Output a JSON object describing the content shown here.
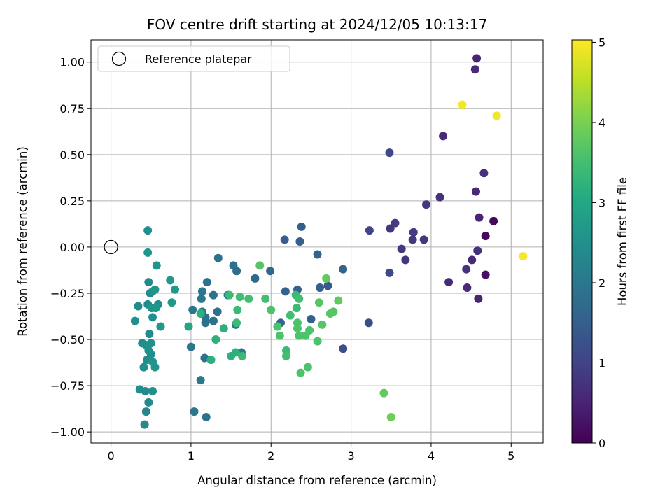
{
  "chart_data": {
    "type": "scatter",
    "title": "FOV centre drift starting at 2024/12/05 10:13:17",
    "xlabel": "Angular distance from reference (arcmin)",
    "ylabel": "Rotation from reference (arcmin)",
    "xlim": [
      -0.25,
      5.4
    ],
    "ylim": [
      -1.06,
      1.12
    ],
    "x_ticks": [
      0,
      1,
      2,
      3,
      4,
      5
    ],
    "x_tick_labels": [
      "0",
      "1",
      "2",
      "3",
      "4",
      "5"
    ],
    "y_ticks": [
      -1.0,
      -0.75,
      -0.5,
      -0.25,
      0.0,
      0.25,
      0.5,
      0.75,
      1.0
    ],
    "y_tick_labels": [
      "−1.00",
      "−0.75",
      "−0.50",
      "−0.25",
      "0.00",
      "0.25",
      "0.50",
      "0.75",
      "1.00"
    ],
    "grid": true,
    "legend": {
      "placement": "top-left",
      "label": "Reference platepar"
    },
    "reference_point": {
      "x": 0.0,
      "y": 0.0
    },
    "colorbar": {
      "label": "Hours from first FF file",
      "range": [
        0,
        5.03
      ],
      "ticks": [
        0,
        1,
        2,
        3,
        4,
        5
      ],
      "tick_labels": [
        "0",
        "1",
        "2",
        "3",
        "4",
        "5"
      ],
      "colormap": "viridis"
    },
    "points": [
      [
        4.57,
        1.02,
        0.5
      ],
      [
        4.55,
        0.96,
        0.6
      ],
      [
        4.39,
        0.77,
        4.95
      ],
      [
        4.82,
        0.71,
        4.95
      ],
      [
        4.15,
        0.6,
        0.6
      ],
      [
        3.48,
        0.51,
        1.1
      ],
      [
        4.66,
        0.4,
        0.7
      ],
      [
        4.56,
        0.3,
        0.6
      ],
      [
        4.11,
        0.27,
        0.7
      ],
      [
        3.94,
        0.23,
        0.8
      ],
      [
        4.6,
        0.16,
        0.5
      ],
      [
        4.78,
        0.14,
        0.1
      ],
      [
        3.55,
        0.13,
        0.9
      ],
      [
        3.49,
        0.1,
        0.8
      ],
      [
        3.23,
        0.09,
        1.0
      ],
      [
        3.78,
        0.08,
        0.9
      ],
      [
        4.68,
        0.06,
        0.1
      ],
      [
        3.91,
        0.04,
        0.8
      ],
      [
        3.77,
        0.04,
        0.8
      ],
      [
        3.63,
        -0.01,
        0.8
      ],
      [
        4.58,
        -0.02,
        0.7
      ],
      [
        5.15,
        -0.05,
        5.0
      ],
      [
        3.68,
        -0.07,
        0.8
      ],
      [
        4.51,
        -0.07,
        0.6
      ],
      [
        4.44,
        -0.12,
        0.7
      ],
      [
        3.48,
        -0.14,
        1.1
      ],
      [
        4.68,
        -0.15,
        0.2
      ],
      [
        4.22,
        -0.19,
        0.6
      ],
      [
        4.45,
        -0.22,
        0.6
      ],
      [
        4.59,
        -0.28,
        0.5
      ],
      [
        3.22,
        -0.41,
        1.2
      ],
      [
        2.9,
        -0.55,
        1.2
      ],
      [
        2.38,
        0.11,
        1.5
      ],
      [
        2.17,
        0.04,
        1.5
      ],
      [
        2.36,
        0.03,
        1.5
      ],
      [
        2.58,
        -0.04,
        1.6
      ],
      [
        1.99,
        -0.13,
        1.7
      ],
      [
        1.8,
        -0.17,
        1.7
      ],
      [
        2.9,
        -0.12,
        1.6
      ],
      [
        2.61,
        -0.22,
        1.5
      ],
      [
        2.71,
        -0.21,
        1.4
      ],
      [
        2.33,
        -0.23,
        1.6
      ],
      [
        2.18,
        -0.24,
        1.6
      ],
      [
        2.12,
        -0.41,
        1.6
      ],
      [
        2.5,
        -0.39,
        1.5
      ],
      [
        1.34,
        -0.06,
        1.9
      ],
      [
        1.53,
        -0.1,
        1.9
      ],
      [
        1.57,
        -0.13,
        1.8
      ],
      [
        1.2,
        -0.19,
        1.9
      ],
      [
        1.14,
        -0.24,
        2.0
      ],
      [
        1.13,
        -0.28,
        2.0
      ],
      [
        1.28,
        -0.26,
        1.9
      ],
      [
        1.46,
        -0.26,
        2.0
      ],
      [
        1.02,
        -0.34,
        2.0
      ],
      [
        1.14,
        -0.35,
        2.0
      ],
      [
        1.33,
        -0.35,
        1.9
      ],
      [
        1.18,
        -0.38,
        1.9
      ],
      [
        1.28,
        -0.4,
        1.9
      ],
      [
        1.18,
        -0.41,
        1.9
      ],
      [
        1.56,
        -0.42,
        1.9
      ],
      [
        1.63,
        -0.57,
        2.0
      ],
      [
        1.0,
        -0.54,
        2.0
      ],
      [
        1.12,
        -0.72,
        2.0
      ],
      [
        1.17,
        -0.6,
        1.9
      ],
      [
        1.04,
        -0.89,
        2.0
      ],
      [
        1.19,
        -0.92,
        1.9
      ],
      [
        0.46,
        0.09,
        2.5
      ],
      [
        0.46,
        -0.03,
        2.6
      ],
      [
        0.57,
        -0.1,
        2.6
      ],
      [
        0.47,
        -0.19,
        2.4
      ],
      [
        0.49,
        -0.25,
        2.4
      ],
      [
        0.52,
        -0.24,
        2.5
      ],
      [
        0.55,
        -0.23,
        2.6
      ],
      [
        0.74,
        -0.18,
        2.7
      ],
      [
        0.8,
        -0.23,
        2.7
      ],
      [
        0.34,
        -0.32,
        2.4
      ],
      [
        0.46,
        -0.31,
        2.4
      ],
      [
        0.51,
        -0.33,
        2.6
      ],
      [
        0.59,
        -0.31,
        2.5
      ],
      [
        0.56,
        -0.33,
        2.6
      ],
      [
        0.52,
        -0.38,
        2.5
      ],
      [
        0.3,
        -0.4,
        2.5
      ],
      [
        0.62,
        -0.43,
        2.7
      ],
      [
        0.76,
        -0.3,
        2.7
      ],
      [
        0.48,
        -0.47,
        2.4
      ],
      [
        0.39,
        -0.52,
        2.4
      ],
      [
        0.44,
        -0.53,
        2.5
      ],
      [
        0.5,
        -0.52,
        2.5
      ],
      [
        0.47,
        -0.56,
        2.5
      ],
      [
        0.5,
        -0.58,
        2.5
      ],
      [
        0.45,
        -0.61,
        2.4
      ],
      [
        0.52,
        -0.62,
        2.6
      ],
      [
        0.41,
        -0.65,
        2.5
      ],
      [
        0.55,
        -0.65,
        2.6
      ],
      [
        0.36,
        -0.77,
        2.5
      ],
      [
        0.43,
        -0.78,
        2.4
      ],
      [
        0.52,
        -0.78,
        2.5
      ],
      [
        0.47,
        -0.84,
        2.4
      ],
      [
        0.44,
        -0.89,
        2.3
      ],
      [
        0.42,
        -0.96,
        2.4
      ],
      [
        0.97,
        -0.43,
        3.0
      ],
      [
        1.12,
        -0.36,
        3.2
      ],
      [
        1.25,
        -0.61,
        3.2
      ],
      [
        1.31,
        -0.5,
        3.2
      ],
      [
        1.41,
        -0.44,
        3.2
      ],
      [
        1.48,
        -0.26,
        3.4
      ],
      [
        1.5,
        -0.59,
        3.2
      ],
      [
        1.56,
        -0.57,
        3.2
      ],
      [
        1.57,
        -0.41,
        3.4
      ],
      [
        1.58,
        -0.34,
        3.4
      ],
      [
        1.61,
        -0.27,
        3.5
      ],
      [
        1.64,
        -0.59,
        3.4
      ],
      [
        1.72,
        -0.28,
        3.5
      ],
      [
        1.86,
        -0.1,
        3.7
      ],
      [
        1.93,
        -0.28,
        3.5
      ],
      [
        2.0,
        -0.34,
        3.6
      ],
      [
        2.08,
        -0.43,
        3.6
      ],
      [
        2.11,
        -0.48,
        3.6
      ],
      [
        2.19,
        -0.56,
        3.4
      ],
      [
        2.19,
        -0.59,
        3.5
      ],
      [
        2.24,
        -0.37,
        3.5
      ],
      [
        2.31,
        -0.26,
        3.4
      ],
      [
        2.32,
        -0.33,
        3.4
      ],
      [
        2.33,
        -0.41,
        3.6
      ],
      [
        2.33,
        -0.44,
        3.6
      ],
      [
        2.35,
        -0.28,
        3.5
      ],
      [
        2.35,
        -0.48,
        3.6
      ],
      [
        2.37,
        -0.68,
        3.6
      ],
      [
        2.43,
        -0.48,
        3.6
      ],
      [
        2.46,
        -0.65,
        3.6
      ],
      [
        2.48,
        -0.45,
        3.6
      ],
      [
        2.58,
        -0.51,
        3.6
      ],
      [
        2.6,
        -0.3,
        3.7
      ],
      [
        2.64,
        -0.42,
        3.7
      ],
      [
        2.69,
        -0.17,
        3.8
      ],
      [
        2.74,
        -0.36,
        3.7
      ],
      [
        2.78,
        -0.35,
        3.7
      ],
      [
        2.84,
        -0.29,
        3.8
      ],
      [
        3.41,
        -0.79,
        3.8
      ],
      [
        3.5,
        -0.92,
        3.9
      ]
    ]
  }
}
